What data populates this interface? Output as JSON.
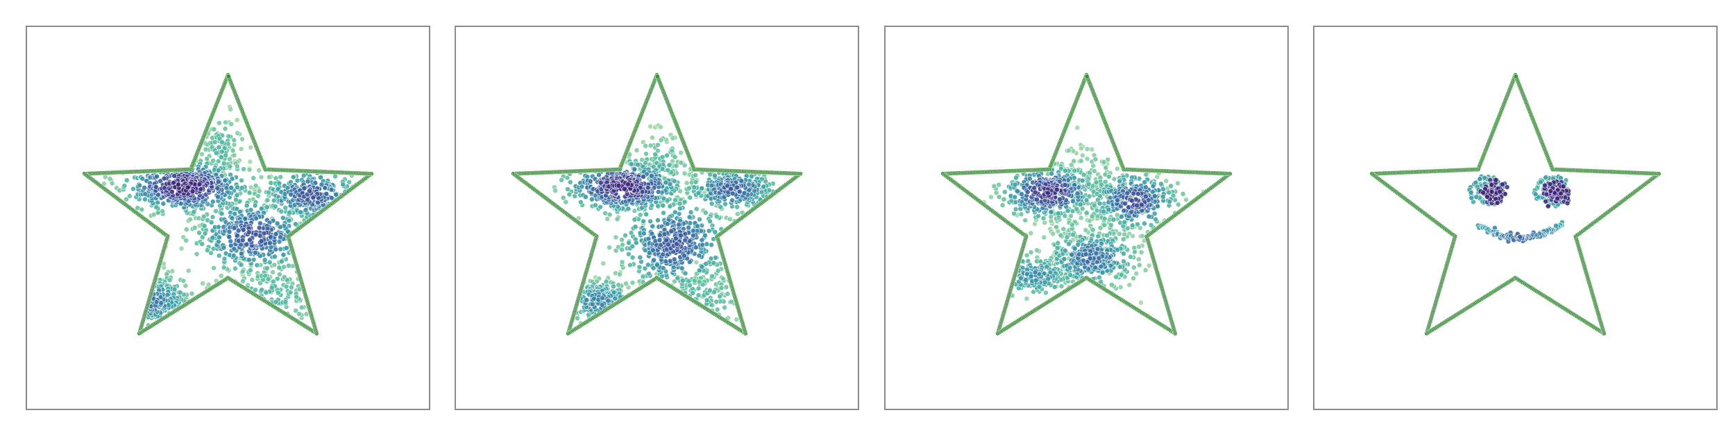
{
  "chart_data": [
    {
      "type": "scatter",
      "title": "",
      "xlabel": "",
      "ylabel": "",
      "grid": false,
      "outline_color": "#3f8f3f",
      "star_outer_radius": 1.0,
      "star_inner_radius": 0.42,
      "xlim": [
        -1.25,
        1.25
      ],
      "ylim": [
        -1.25,
        1.25
      ],
      "color_map": [
        "#a6d9a6",
        "#5fbfa0",
        "#3b9aa8",
        "#3a6ea5",
        "#3f3f8f",
        "#3b1a6e"
      ],
      "clusters": [
        {
          "x": -0.28,
          "y": 0.22,
          "sx": 0.2,
          "sy": 0.09,
          "n": 500,
          "level": 0.95
        },
        {
          "x": 0.55,
          "y": 0.16,
          "sx": 0.16,
          "sy": 0.09,
          "n": 280,
          "level": 0.7
        },
        {
          "x": 0.17,
          "y": -0.12,
          "sx": 0.19,
          "sy": 0.13,
          "n": 380,
          "level": 0.72
        },
        {
          "x": -0.53,
          "y": -0.58,
          "sx": 0.15,
          "sy": 0.1,
          "n": 170,
          "level": 0.55
        },
        {
          "x": 0.28,
          "y": -0.55,
          "sx": 0.18,
          "sy": 0.14,
          "n": 120,
          "level": 0.25
        },
        {
          "x": -0.05,
          "y": 0.48,
          "sx": 0.07,
          "sy": 0.12,
          "n": 110,
          "level": 0.25
        }
      ]
    },
    {
      "type": "scatter",
      "title": "",
      "xlabel": "",
      "ylabel": "",
      "grid": false,
      "outline_color": "#3f8f3f",
      "star_outer_radius": 1.0,
      "star_inner_radius": 0.42,
      "xlim": [
        -1.25,
        1.25
      ],
      "ylim": [
        -1.25,
        1.25
      ],
      "color_map": [
        "#a6d9a6",
        "#5fbfa0",
        "#3b9aa8",
        "#3a6ea5",
        "#3f3f8f",
        "#3b1a6e"
      ],
      "clusters": [
        {
          "x": -0.22,
          "y": 0.22,
          "sx": 0.19,
          "sy": 0.09,
          "n": 450,
          "level": 0.92
        },
        {
          "x": 0.5,
          "y": 0.2,
          "sx": 0.15,
          "sy": 0.08,
          "n": 250,
          "level": 0.65
        },
        {
          "x": 0.12,
          "y": -0.18,
          "sx": 0.18,
          "sy": 0.16,
          "n": 420,
          "level": 0.68
        },
        {
          "x": -0.38,
          "y": -0.58,
          "sx": 0.14,
          "sy": 0.08,
          "n": 170,
          "level": 0.5
        },
        {
          "x": 0.28,
          "y": -0.55,
          "sx": 0.16,
          "sy": 0.12,
          "n": 110,
          "level": 0.25
        },
        {
          "x": 0.02,
          "y": 0.38,
          "sx": 0.1,
          "sy": 0.1,
          "n": 120,
          "level": 0.25
        }
      ]
    },
    {
      "type": "scatter",
      "title": "",
      "xlabel": "",
      "ylabel": "",
      "grid": false,
      "outline_color": "#3f8f3f",
      "star_outer_radius": 1.0,
      "star_inner_radius": 0.42,
      "xlim": [
        -1.25,
        1.25
      ],
      "ylim": [
        -1.25,
        1.25
      ],
      "color_map": [
        "#a6d9a6",
        "#5fbfa0",
        "#3b9aa8",
        "#3a6ea5",
        "#3f3f8f",
        "#3b1a6e"
      ],
      "clusters": [
        {
          "x": -0.25,
          "y": 0.18,
          "sx": 0.15,
          "sy": 0.09,
          "n": 330,
          "level": 0.88
        },
        {
          "x": 0.32,
          "y": 0.12,
          "sx": 0.14,
          "sy": 0.1,
          "n": 280,
          "level": 0.75
        },
        {
          "x": 0.03,
          "y": -0.28,
          "sx": 0.15,
          "sy": 0.1,
          "n": 330,
          "level": 0.6
        },
        {
          "x": -0.35,
          "y": -0.4,
          "sx": 0.14,
          "sy": 0.08,
          "n": 160,
          "level": 0.45
        },
        {
          "x": 0.02,
          "y": 0.15,
          "sx": 0.22,
          "sy": 0.18,
          "n": 260,
          "level": 0.22
        }
      ]
    },
    {
      "type": "scatter",
      "title": "",
      "xlabel": "",
      "ylabel": "",
      "grid": false,
      "outline_color": "#3f8f3f",
      "star_outer_radius": 1.0,
      "star_inner_radius": 0.42,
      "xlim": [
        -1.25,
        1.25
      ],
      "ylim": [
        -1.25,
        1.25
      ],
      "color_map": [
        "#a6d9a6",
        "#5fbfa0",
        "#3b9aa8",
        "#3a6ea5",
        "#3f3f8f",
        "#3b1a6e"
      ],
      "eyes": [
        {
          "x": -0.18,
          "y": 0.18,
          "spiral_radius": 0.12,
          "dense_x": -0.15,
          "dense_y": 0.18
        },
        {
          "x": 0.25,
          "y": 0.18,
          "spiral_radius": 0.12,
          "dense_x": 0.27,
          "dense_y": 0.18
        }
      ],
      "mouth": {
        "x": 0.03,
        "y": -0.05,
        "width": 0.28,
        "depth": 0.09
      }
    }
  ]
}
